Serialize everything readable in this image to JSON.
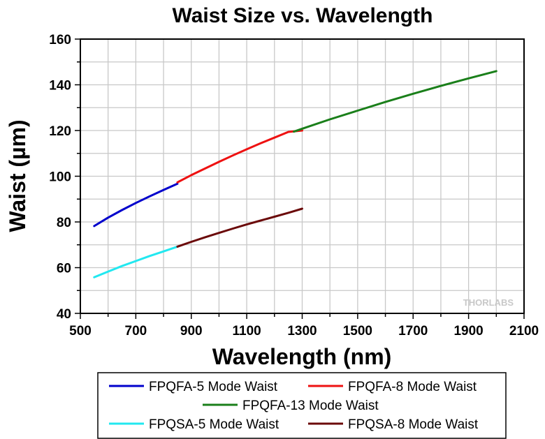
{
  "chart_data": {
    "type": "line",
    "title": "Waist Size vs. Wavelength",
    "xlabel": "Wavelength (nm)",
    "ylabel": "Waist (µm)",
    "xlim": [
      500,
      2100
    ],
    "ylim": [
      40,
      160
    ],
    "x_ticks": [
      500,
      700,
      900,
      1100,
      1300,
      1500,
      1700,
      1900,
      2100
    ],
    "y_ticks": [
      40,
      60,
      80,
      100,
      120,
      140,
      160
    ],
    "grid": true,
    "legend_position": "bottom",
    "watermark": "THORLABS",
    "series": [
      {
        "name": "FPQFA-5 Mode Waist",
        "color": "#0000cc",
        "x": [
          550,
          600,
          650,
          700,
          750,
          800,
          850
        ],
        "y": [
          78.2,
          81.9,
          85.2,
          88.3,
          91.2,
          94.0,
          96.7
        ]
      },
      {
        "name": "FPQFA-8 Mode Waist",
        "color": "#ee1111",
        "x": [
          850,
          900,
          950,
          1000,
          1050,
          1100,
          1150,
          1200,
          1250,
          1300
        ],
        "y": [
          97.3,
          100.5,
          103.4,
          106.3,
          109.1,
          111.8,
          114.4,
          116.9,
          119.4,
          120.0
        ]
      },
      {
        "name": "FPQFA-13 Mode Waist",
        "color": "#1a7f1a",
        "x": [
          1270,
          1300,
          1400,
          1500,
          1600,
          1700,
          1800,
          1900,
          2000
        ],
        "y": [
          119.5,
          120.8,
          124.9,
          128.7,
          132.5,
          136.1,
          139.5,
          142.8,
          146.0
        ]
      },
      {
        "name": "FPQSA-5 Mode Waist",
        "color": "#22e8f0",
        "x": [
          550,
          600,
          650,
          700,
          750,
          800,
          850
        ],
        "y": [
          55.8,
          58.3,
          60.7,
          62.9,
          65.1,
          67.1,
          69.2
        ]
      },
      {
        "name": "FPQSA-8 Mode Waist",
        "color": "#6b0a0a",
        "x": [
          850,
          900,
          950,
          1000,
          1050,
          1100,
          1150,
          1200,
          1250,
          1300
        ],
        "y": [
          69.2,
          71.3,
          73.3,
          75.2,
          77.1,
          78.9,
          80.6,
          82.3,
          84.0,
          85.8
        ]
      }
    ]
  }
}
